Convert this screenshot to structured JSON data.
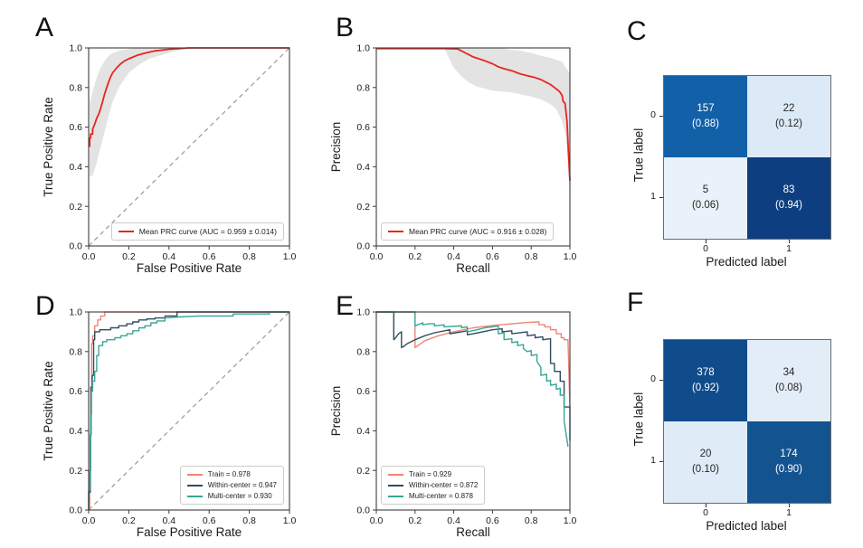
{
  "figure": {
    "background": "#ffffff",
    "axes_color": "#3c3c3c",
    "grid": false
  },
  "chart_data": [
    {
      "letter": "A",
      "type": "line",
      "title": "",
      "xlabel": "False Positive Rate",
      "ylabel": "True Positive Rate",
      "xlim": [
        0,
        1
      ],
      "ylim": [
        0,
        1
      ],
      "xticks": [
        "0.0",
        "0.2",
        "0.4",
        "0.6",
        "0.8",
        "1.0"
      ],
      "yticks": [
        "0.0",
        "0.2",
        "0.4",
        "0.6",
        "0.8",
        "1.0"
      ],
      "diagonal": true,
      "diagonal_color": "#999999",
      "band": {
        "color": "#e0e0e0",
        "x": [
          0.005,
          0.02,
          0.04,
          0.06,
          0.08,
          0.1,
          0.12,
          0.15,
          0.2,
          0.25,
          0.3,
          0.4,
          0.5,
          1.0
        ],
        "upper": [
          0.72,
          0.78,
          0.85,
          0.9,
          0.935,
          0.96,
          0.975,
          0.985,
          0.995,
          1.0,
          1.0,
          1.0,
          1.0,
          1.0
        ],
        "lower": [
          0.35,
          0.355,
          0.42,
          0.5,
          0.58,
          0.66,
          0.73,
          0.8,
          0.875,
          0.915,
          0.945,
          0.975,
          1.0,
          1.0
        ]
      },
      "series": [
        {
          "name": "Mean PRC curve (AUC = 0.959 ± 0.014)",
          "color": "#ea2420",
          "width": 1.8,
          "x": [
            0.005,
            0.005,
            0.01,
            0.01,
            0.02,
            0.02,
            0.03,
            0.04,
            0.05,
            0.06,
            0.07,
            0.08,
            0.09,
            0.1,
            0.11,
            0.12,
            0.14,
            0.16,
            0.18,
            0.2,
            0.24,
            0.28,
            0.33,
            0.4,
            0.5,
            1.0
          ],
          "y": [
            0.5,
            0.545,
            0.545,
            0.565,
            0.565,
            0.59,
            0.615,
            0.645,
            0.665,
            0.695,
            0.73,
            0.77,
            0.8,
            0.83,
            0.855,
            0.875,
            0.9,
            0.92,
            0.935,
            0.945,
            0.962,
            0.974,
            0.985,
            0.993,
            1.0,
            1.0
          ]
        }
      ],
      "legend": {
        "position": "bottom-right",
        "entries": [
          {
            "label": "Mean PRC curve (AUC = 0.959 ± 0.014)",
            "color": "#ea2420"
          }
        ]
      }
    },
    {
      "letter": "B",
      "type": "line",
      "title": "",
      "xlabel": "Recall",
      "ylabel": "Precision",
      "xlim": [
        0,
        1
      ],
      "ylim": [
        0,
        1
      ],
      "xticks": [
        "0.0",
        "0.2",
        "0.4",
        "0.6",
        "0.8",
        "1.0"
      ],
      "yticks": [
        "0.0",
        "0.2",
        "0.4",
        "0.6",
        "0.8",
        "1.0"
      ],
      "diagonal": false,
      "band": {
        "color": "#e0e0e0",
        "x": [
          0.35,
          0.4,
          0.44,
          0.48,
          0.52,
          0.56,
          0.6,
          0.65,
          0.7,
          0.75,
          0.8,
          0.85,
          0.9,
          0.93,
          0.96,
          0.98,
          1.0
        ],
        "upper": [
          1.0,
          1.0,
          1.0,
          1.0,
          1.0,
          1.0,
          1.0,
          1.0,
          0.99,
          0.985,
          0.975,
          0.96,
          0.95,
          0.94,
          0.93,
          0.9,
          0.87
        ],
        "lower": [
          1.0,
          0.9,
          0.855,
          0.825,
          0.805,
          0.795,
          0.785,
          0.78,
          0.775,
          0.765,
          0.755,
          0.74,
          0.715,
          0.69,
          0.63,
          0.55,
          0.26
        ]
      },
      "series": [
        {
          "name": "Mean PRC curve (AUC = 0.916 ± 0.028)",
          "color": "#ea2420",
          "width": 1.8,
          "x": [
            0.0,
            0.35,
            0.42,
            0.44,
            0.46,
            0.48,
            0.5,
            0.53,
            0.56,
            0.6,
            0.63,
            0.66,
            0.7,
            0.74,
            0.78,
            0.82,
            0.85,
            0.88,
            0.9,
            0.92,
            0.94,
            0.95,
            0.96,
            0.965,
            0.975,
            0.985,
            0.99,
            1.0
          ],
          "y": [
            0.997,
            0.997,
            0.995,
            0.985,
            0.975,
            0.965,
            0.955,
            0.945,
            0.935,
            0.92,
            0.905,
            0.895,
            0.885,
            0.87,
            0.86,
            0.85,
            0.84,
            0.825,
            0.815,
            0.8,
            0.785,
            0.775,
            0.76,
            0.73,
            0.72,
            0.63,
            0.52,
            0.33
          ]
        }
      ],
      "legend": {
        "position": "bottom-left",
        "entries": [
          {
            "label": "Mean PRC curve (AUC = 0.916 ± 0.028)",
            "color": "#ea2420"
          }
        ]
      }
    },
    {
      "letter": "C",
      "type": "heatmap",
      "xlabel": "Predicted label",
      "ylabel": "True label",
      "xticklabels": [
        "0",
        "1"
      ],
      "yticklabels": [
        "0",
        "1"
      ],
      "cells": [
        {
          "row": 0,
          "col": 0,
          "count": "157",
          "fraction": "(0.88)",
          "bg": "#1260a7",
          "fg": "#ffffff"
        },
        {
          "row": 0,
          "col": 1,
          "count": "22",
          "fraction": "(0.12)",
          "bg": "#dce9f6",
          "fg": "#262626"
        },
        {
          "row": 1,
          "col": 0,
          "count": "5",
          "fraction": "(0.06)",
          "bg": "#e9f1fa",
          "fg": "#262626"
        },
        {
          "row": 1,
          "col": 1,
          "count": "83",
          "fraction": "(0.94)",
          "bg": "#0d3e80",
          "fg": "#ffffff"
        }
      ]
    },
    {
      "letter": "D",
      "type": "line",
      "title": "",
      "xlabel": "False Positive Rate",
      "ylabel": "True Positive Rate",
      "xlim": [
        0,
        1
      ],
      "ylim": [
        0,
        1
      ],
      "xticks": [
        "0.0",
        "0.2",
        "0.4",
        "0.6",
        "0.8",
        "1.0"
      ],
      "yticks": [
        "0.0",
        "0.2",
        "0.4",
        "0.6",
        "0.8",
        "1.0"
      ],
      "diagonal": true,
      "diagonal_color": "#999999",
      "series": [
        {
          "name": "Train = 0.978",
          "color": "#ee8575",
          "width": 1.4,
          "x": [
            0.0,
            0.005,
            0.005,
            0.01,
            0.01,
            0.015,
            0.015,
            0.02,
            0.02,
            0.03,
            0.03,
            0.045,
            0.045,
            0.06,
            0.06,
            0.08,
            0.08,
            1.0
          ],
          "y": [
            0.0,
            0.0,
            0.2,
            0.2,
            0.62,
            0.62,
            0.84,
            0.84,
            0.88,
            0.88,
            0.93,
            0.93,
            0.96,
            0.96,
            0.98,
            0.98,
            1.0,
            1.0
          ]
        },
        {
          "name": "Within-center = 0.947",
          "color": "#2e4d62",
          "width": 1.4,
          "x": [
            0.0,
            0.0,
            0.008,
            0.008,
            0.012,
            0.012,
            0.018,
            0.018,
            0.025,
            0.025,
            0.03,
            0.03,
            0.055,
            0.055,
            0.11,
            0.11,
            0.15,
            0.15,
            0.19,
            0.19,
            0.22,
            0.22,
            0.25,
            0.25,
            0.29,
            0.29,
            0.33,
            0.33,
            0.38,
            0.38,
            0.44,
            0.44,
            1.0
          ],
          "y": [
            0.0,
            0.09,
            0.09,
            0.38,
            0.38,
            0.62,
            0.62,
            0.68,
            0.68,
            0.86,
            0.86,
            0.9,
            0.9,
            0.91,
            0.91,
            0.92,
            0.92,
            0.93,
            0.93,
            0.94,
            0.94,
            0.95,
            0.95,
            0.96,
            0.96,
            0.965,
            0.965,
            0.97,
            0.97,
            0.98,
            0.98,
            1.0,
            1.0
          ]
        },
        {
          "name": "Multi-center = 0.930",
          "color": "#38a695",
          "width": 1.4,
          "x": [
            0.0,
            0.0,
            0.006,
            0.006,
            0.01,
            0.01,
            0.014,
            0.014,
            0.02,
            0.02,
            0.03,
            0.03,
            0.04,
            0.04,
            0.05,
            0.05,
            0.07,
            0.07,
            0.09,
            0.09,
            0.13,
            0.13,
            0.16,
            0.16,
            0.19,
            0.19,
            0.22,
            0.22,
            0.25,
            0.25,
            0.28,
            0.28,
            0.31,
            0.31,
            0.34,
            0.34,
            0.38,
            0.38,
            0.45,
            0.55,
            0.72,
            0.72,
            0.9,
            0.9,
            1.0
          ],
          "y": [
            0.0,
            0.1,
            0.1,
            0.2,
            0.2,
            0.48,
            0.48,
            0.6,
            0.6,
            0.65,
            0.65,
            0.7,
            0.7,
            0.78,
            0.78,
            0.83,
            0.83,
            0.85,
            0.85,
            0.86,
            0.86,
            0.87,
            0.87,
            0.88,
            0.88,
            0.89,
            0.89,
            0.905,
            0.905,
            0.92,
            0.92,
            0.93,
            0.93,
            0.945,
            0.945,
            0.955,
            0.955,
            0.97,
            0.975,
            0.98,
            0.98,
            0.99,
            0.99,
            1.0,
            1.0
          ]
        }
      ],
      "legend": {
        "position": "bottom-right",
        "entries": [
          {
            "label": "Train = 0.978",
            "color": "#ee8575"
          },
          {
            "label": "Within-center = 0.947",
            "color": "#2e4d62"
          },
          {
            "label": "Multi-center = 0.930",
            "color": "#38a695"
          }
        ]
      }
    },
    {
      "letter": "E",
      "type": "line",
      "title": "",
      "xlabel": "Recall",
      "ylabel": "Precision",
      "xlim": [
        0,
        1
      ],
      "ylim": [
        0,
        1
      ],
      "xticks": [
        "0.0",
        "0.2",
        "0.4",
        "0.6",
        "0.8",
        "1.0"
      ],
      "yticks": [
        "0.0",
        "0.2",
        "0.4",
        "0.6",
        "0.8",
        "1.0"
      ],
      "diagonal": false,
      "series": [
        {
          "name": "Train = 0.929",
          "color": "#ee8575",
          "width": 1.4,
          "x": [
            0.0,
            0.2,
            0.2,
            0.25,
            0.32,
            0.4,
            0.5,
            0.6,
            0.7,
            0.78,
            0.84,
            0.84,
            0.87,
            0.87,
            0.9,
            0.9,
            0.93,
            0.93,
            0.955,
            0.955,
            0.97,
            0.97,
            0.99,
            1.0
          ],
          "y": [
            1.0,
            1.0,
            0.82,
            0.855,
            0.88,
            0.9,
            0.92,
            0.932,
            0.94,
            0.947,
            0.95,
            0.935,
            0.935,
            0.925,
            0.925,
            0.91,
            0.91,
            0.89,
            0.89,
            0.87,
            0.87,
            0.86,
            0.86,
            0.51
          ]
        },
        {
          "name": "Within-center = 0.872",
          "color": "#2e4d62",
          "width": 1.4,
          "x": [
            0.0,
            0.09,
            0.09,
            0.1,
            0.115,
            0.13,
            0.13,
            0.14,
            0.16,
            0.2,
            0.25,
            0.3,
            0.38,
            0.38,
            0.4,
            0.47,
            0.47,
            0.5,
            0.55,
            0.6,
            0.65,
            0.65,
            0.7,
            0.7,
            0.78,
            0.78,
            0.82,
            0.82,
            0.86,
            0.86,
            0.9,
            0.9,
            0.92,
            0.92,
            0.95,
            0.95,
            0.97,
            0.97,
            1.0,
            1.0
          ],
          "y": [
            1.0,
            1.0,
            0.86,
            0.87,
            0.89,
            0.9,
            0.82,
            0.825,
            0.84,
            0.86,
            0.88,
            0.895,
            0.91,
            0.89,
            0.893,
            0.905,
            0.885,
            0.89,
            0.9,
            0.91,
            0.915,
            0.9,
            0.905,
            0.89,
            0.9,
            0.88,
            0.885,
            0.87,
            0.875,
            0.86,
            0.865,
            0.74,
            0.74,
            0.7,
            0.7,
            0.65,
            0.65,
            0.52,
            0.52,
            0.35
          ]
        },
        {
          "name": "Multi-center = 0.878",
          "color": "#38a695",
          "width": 1.4,
          "x": [
            0.0,
            0.2,
            0.2,
            0.24,
            0.24,
            0.27,
            0.3,
            0.3,
            0.35,
            0.35,
            0.44,
            0.44,
            0.47,
            0.47,
            0.52,
            0.56,
            0.6,
            0.63,
            0.63,
            0.66,
            0.66,
            0.7,
            0.7,
            0.73,
            0.73,
            0.76,
            0.76,
            0.78,
            0.8,
            0.8,
            0.83,
            0.83,
            0.85,
            0.85,
            0.88,
            0.88,
            0.9,
            0.9,
            0.93,
            0.93,
            0.95,
            0.95,
            0.97,
            0.97,
            0.99
          ],
          "y": [
            1.0,
            1.0,
            0.93,
            0.945,
            0.935,
            0.94,
            0.94,
            0.93,
            0.935,
            0.925,
            0.93,
            0.92,
            0.925,
            0.9,
            0.91,
            0.92,
            0.925,
            0.93,
            0.89,
            0.895,
            0.86,
            0.865,
            0.845,
            0.85,
            0.83,
            0.835,
            0.815,
            0.8,
            0.805,
            0.78,
            0.785,
            0.75,
            0.72,
            0.68,
            0.685,
            0.65,
            0.655,
            0.63,
            0.635,
            0.61,
            0.615,
            0.58,
            0.58,
            0.45,
            0.32
          ]
        }
      ],
      "legend": {
        "position": "bottom-left",
        "entries": [
          {
            "label": "Train = 0.929",
            "color": "#ee8575"
          },
          {
            "label": "Within-center = 0.872",
            "color": "#2e4d62"
          },
          {
            "label": "Multi-center = 0.878",
            "color": "#38a695"
          }
        ]
      }
    },
    {
      "letter": "F",
      "type": "heatmap",
      "xlabel": "Predicted label",
      "ylabel": "True label",
      "xticklabels": [
        "0",
        "1"
      ],
      "yticklabels": [
        "0",
        "1"
      ],
      "cells": [
        {
          "row": 0,
          "col": 0,
          "count": "378",
          "fraction": "(0.92)",
          "bg": "#104c8c",
          "fg": "#ffffff"
        },
        {
          "row": 0,
          "col": 1,
          "count": "34",
          "fraction": "(0.08)",
          "bg": "#e3edf8",
          "fg": "#262626"
        },
        {
          "row": 1,
          "col": 0,
          "count": "20",
          "fraction": "(0.10)",
          "bg": "#dfebf7",
          "fg": "#262626"
        },
        {
          "row": 1,
          "col": 1,
          "count": "174",
          "fraction": "(0.90)",
          "bg": "#135390",
          "fg": "#ffffff"
        }
      ]
    }
  ]
}
